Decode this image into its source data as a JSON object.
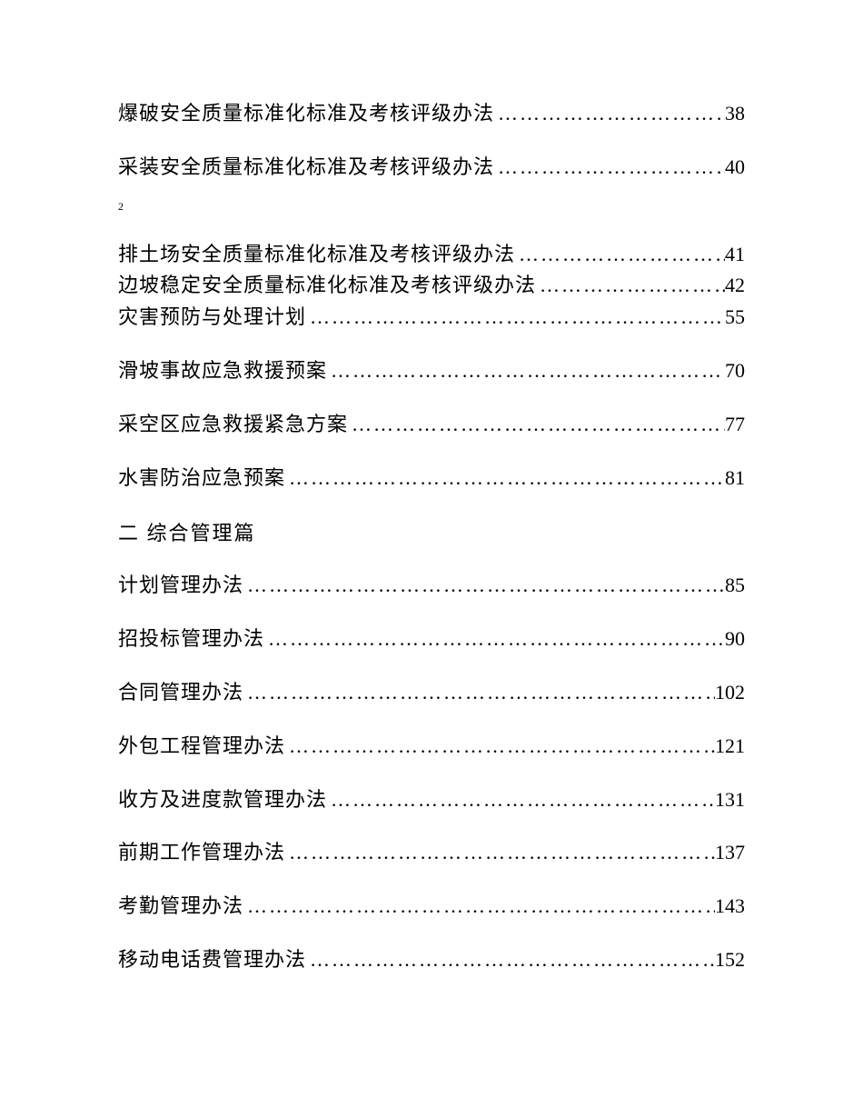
{
  "page_marker": "2",
  "entries_top": [
    {
      "title": "爆破安全质量标准化标准及考核评级办法",
      "page": "38"
    },
    {
      "title": "采装安全质量标准化标准及考核评级办法",
      "page": "40"
    }
  ],
  "entries_group2": [
    {
      "title": "排土场安全质量标准化标准及考核评级办法",
      "page": "41",
      "tight": true
    },
    {
      "title": "边坡稳定安全质量标准化标准及考核评级办法",
      "page": "42",
      "tight": true
    },
    {
      "title": "灾害预防与处理计划",
      "page": "55"
    },
    {
      "title": "滑坡事故应急救援预案",
      "page": "70"
    },
    {
      "title": "采空区应急救援紧急方案",
      "page": "77"
    },
    {
      "title": "水害防治应急预案",
      "page": "81"
    }
  ],
  "section_heading": "二 综合管理篇",
  "entries_section2": [
    {
      "title": "计划管理办法",
      "page": "85"
    },
    {
      "title": "招投标管理办法",
      "page": "90"
    },
    {
      "title": "合同管理办法",
      "page": "102"
    },
    {
      "title": "外包工程管理办法",
      "page": "121"
    },
    {
      "title": "收方及进度款管理办法",
      "page": "131"
    },
    {
      "title": "前期工作管理办法",
      "page": "137"
    },
    {
      "title": "考勤管理办法",
      "page": "143"
    },
    {
      "title": "移动电话费管理办法",
      "page": "152"
    }
  ],
  "styling": {
    "font_size_main": 22,
    "font_size_marker": 12,
    "text_color": "#000000",
    "background_color": "#ffffff",
    "line_spacing": 28,
    "tight_spacing": 4,
    "dot_char": "…",
    "letter_spacing": 1
  }
}
